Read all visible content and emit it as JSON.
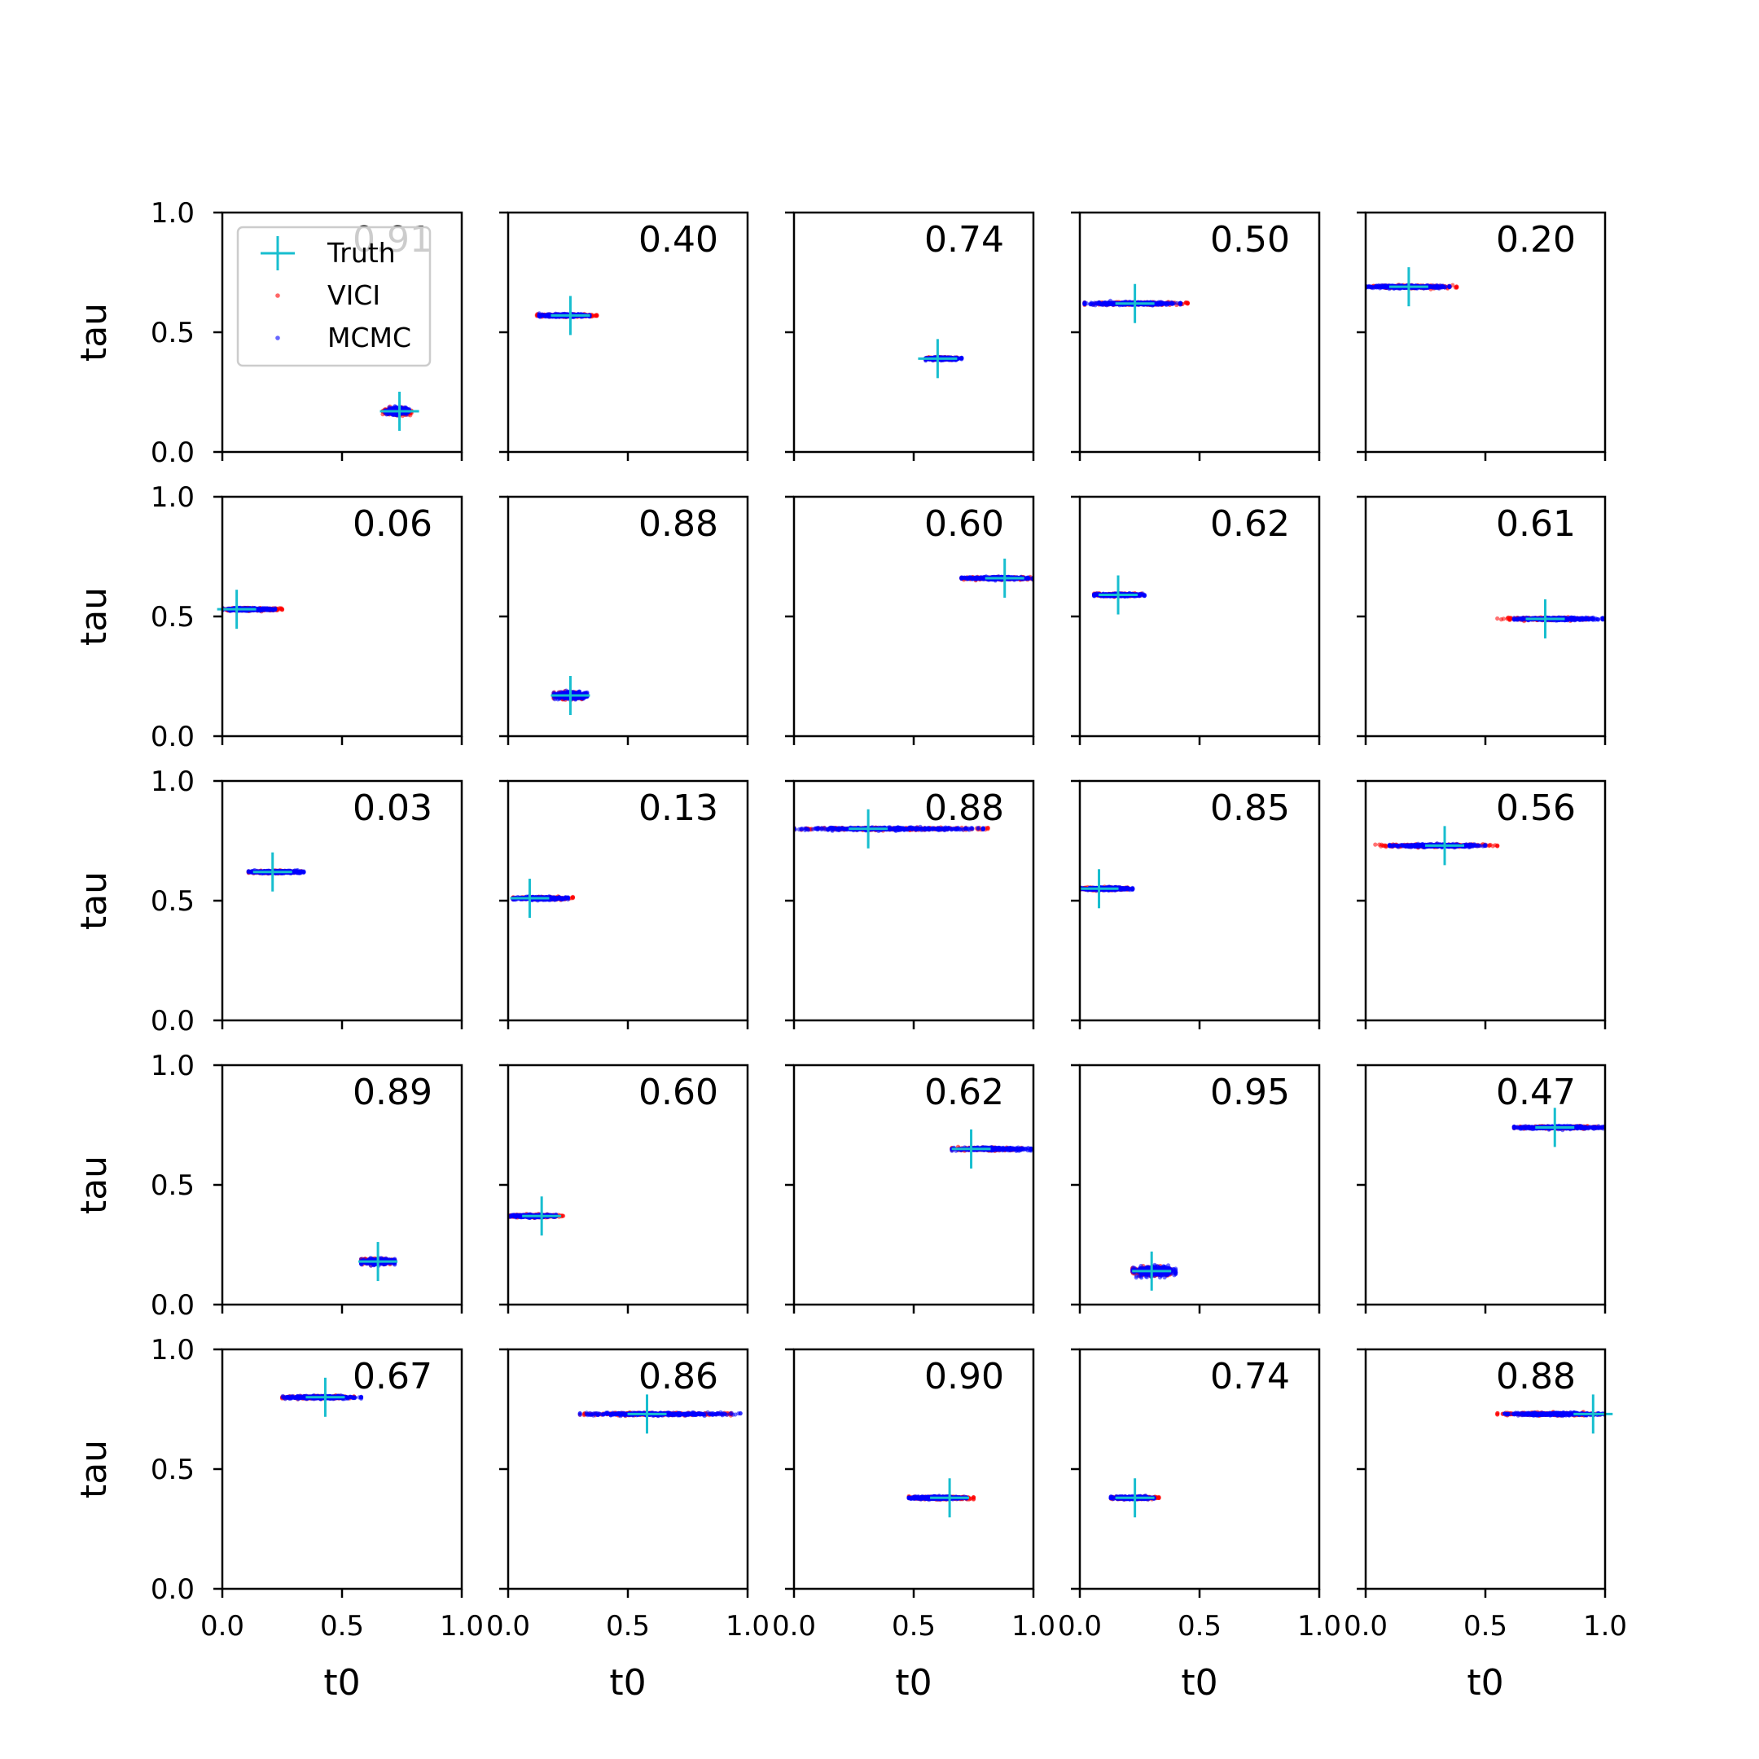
{
  "colors": {
    "truth": "#17becf",
    "vici": "#ff0000",
    "mcmc": "#0000ff",
    "axes": "#000000",
    "background": "#ffffff"
  },
  "legend": {
    "entries": [
      {
        "label": "Truth",
        "marker": "plus",
        "color": "#17becf"
      },
      {
        "label": "VICI",
        "marker": "dot",
        "color": "#ff0000"
      },
      {
        "label": "MCMC",
        "marker": "dot",
        "color": "#0000ff"
      }
    ],
    "placement": "top-left of first subplot"
  },
  "chart_data": {
    "type": "scatter",
    "grid": false,
    "rows": 5,
    "cols": 5,
    "xlabel": "t0",
    "ylabel": "tau",
    "xlim": [
      0,
      1
    ],
    "ylim": [
      0,
      1
    ],
    "xticks": [
      "0.0",
      "0.5",
      "1.0"
    ],
    "yticks": [
      "0.0",
      "0.5",
      "1.0"
    ],
    "panels": [
      {
        "score": "0.91",
        "truth": [
          0.74,
          0.17
        ],
        "vici": [
          0.67,
          0.79
        ],
        "mcmc": [
          0.68,
          0.78
        ],
        "tau_spread": 0.015
      },
      {
        "score": "0.40",
        "truth": [
          0.26,
          0.57
        ],
        "vici": [
          0.12,
          0.37
        ],
        "mcmc": [
          0.13,
          0.34
        ],
        "tau_spread": 0.006
      },
      {
        "score": "0.74",
        "truth": [
          0.6,
          0.39
        ],
        "vici": [
          0.55,
          0.68
        ],
        "mcmc": [
          0.55,
          0.7
        ],
        "tau_spread": 0.006
      },
      {
        "score": "0.50",
        "truth": [
          0.23,
          0.62
        ],
        "vici": [
          0.02,
          0.45
        ],
        "mcmc": [
          0.02,
          0.42
        ],
        "tau_spread": 0.006
      },
      {
        "score": "0.20",
        "truth": [
          0.18,
          0.69
        ],
        "vici": [
          0.0,
          0.38
        ],
        "mcmc": [
          0.0,
          0.35
        ],
        "tau_spread": 0.006
      },
      {
        "score": "0.06",
        "truth": [
          0.06,
          0.53
        ],
        "vici": [
          0.0,
          0.25
        ],
        "mcmc": [
          0.0,
          0.22
        ],
        "tau_spread": 0.006
      },
      {
        "score": "0.88",
        "truth": [
          0.26,
          0.17
        ],
        "vici": [
          0.19,
          0.32
        ],
        "mcmc": [
          0.19,
          0.33
        ],
        "tau_spread": 0.015
      },
      {
        "score": "0.60",
        "truth": [
          0.88,
          0.66
        ],
        "vici": [
          0.7,
          1.0
        ],
        "mcmc": [
          0.7,
          1.0
        ],
        "tau_spread": 0.006
      },
      {
        "score": "0.62",
        "truth": [
          0.16,
          0.59
        ],
        "vici": [
          0.06,
          0.26
        ],
        "mcmc": [
          0.06,
          0.27
        ],
        "tau_spread": 0.006
      },
      {
        "score": "0.61",
        "truth": [
          0.75,
          0.49
        ],
        "vici": [
          0.55,
          0.93
        ],
        "mcmc": [
          0.62,
          0.99
        ],
        "tau_spread": 0.006
      },
      {
        "score": "0.03",
        "truth": [
          0.21,
          0.62
        ],
        "vici": [
          0.11,
          0.33
        ],
        "mcmc": [
          0.11,
          0.34
        ],
        "tau_spread": 0.006
      },
      {
        "score": "0.13",
        "truth": [
          0.09,
          0.51
        ],
        "vici": [
          0.02,
          0.27
        ],
        "mcmc": [
          0.02,
          0.25
        ],
        "tau_spread": 0.006
      },
      {
        "score": "0.88",
        "truth": [
          0.31,
          0.8
        ],
        "vici": [
          0.0,
          0.81
        ],
        "mcmc": [
          0.0,
          0.79
        ],
        "tau_spread": 0.006
      },
      {
        "score": "0.85",
        "truth": [
          0.08,
          0.55
        ],
        "vici": [
          0.0,
          0.2
        ],
        "mcmc": [
          0.0,
          0.22
        ],
        "tau_spread": 0.006
      },
      {
        "score": "0.56",
        "truth": [
          0.33,
          0.73
        ],
        "vici": [
          0.04,
          0.55
        ],
        "mcmc": [
          0.1,
          0.5
        ],
        "tau_spread": 0.006
      },
      {
        "score": "0.89",
        "truth": [
          0.65,
          0.18
        ],
        "vici": [
          0.58,
          0.72
        ],
        "mcmc": [
          0.58,
          0.72
        ],
        "tau_spread": 0.012
      },
      {
        "score": "0.60",
        "truth": [
          0.14,
          0.37
        ],
        "vici": [
          0.0,
          0.23
        ],
        "mcmc": [
          0.01,
          0.2
        ],
        "tau_spread": 0.006
      },
      {
        "score": "0.62",
        "truth": [
          0.74,
          0.65
        ],
        "vici": [
          0.66,
          0.95
        ],
        "mcmc": [
          0.66,
          0.99
        ],
        "tau_spread": 0.006
      },
      {
        "score": "0.95",
        "truth": [
          0.3,
          0.14
        ],
        "vici": [
          0.22,
          0.38
        ],
        "mcmc": [
          0.22,
          0.4
        ],
        "tau_spread": 0.02
      },
      {
        "score": "0.47",
        "truth": [
          0.79,
          0.74
        ],
        "vici": [
          0.62,
          1.0
        ],
        "mcmc": [
          0.62,
          1.0
        ],
        "tau_spread": 0.006
      },
      {
        "score": "0.67",
        "truth": [
          0.43,
          0.8
        ],
        "vici": [
          0.25,
          0.55
        ],
        "mcmc": [
          0.25,
          0.58
        ],
        "tau_spread": 0.006
      },
      {
        "score": "0.86",
        "truth": [
          0.58,
          0.73
        ],
        "vici": [
          0.3,
          0.93
        ],
        "mcmc": [
          0.3,
          0.97
        ],
        "tau_spread": 0.006
      },
      {
        "score": "0.90",
        "truth": [
          0.65,
          0.38
        ],
        "vici": [
          0.48,
          0.75
        ],
        "mcmc": [
          0.48,
          0.72
        ],
        "tau_spread": 0.006
      },
      {
        "score": "0.74",
        "truth": [
          0.23,
          0.38
        ],
        "vici": [
          0.13,
          0.33
        ],
        "mcmc": [
          0.13,
          0.31
        ],
        "tau_spread": 0.006
      },
      {
        "score": "0.88",
        "truth": [
          0.95,
          0.73
        ],
        "vici": [
          0.55,
          1.0
        ],
        "mcmc": [
          0.58,
          1.0
        ],
        "tau_spread": 0.006
      }
    ]
  }
}
